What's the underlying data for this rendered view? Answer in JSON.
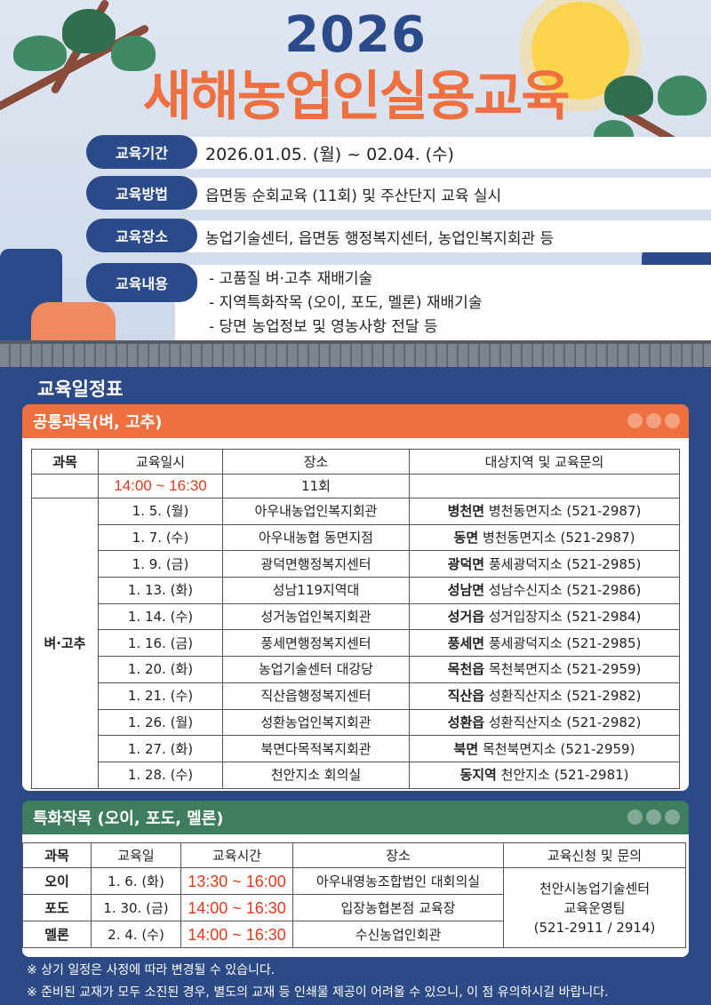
{
  "header": {
    "year": "2026",
    "title": "새해농업인실용교육"
  },
  "info": [
    {
      "label": "교육기간",
      "value": "2026.01.05. (월) ~ 02.04. (수)"
    },
    {
      "label": "교육방법",
      "value": "읍면동 순회교육 (11회) 및 주산단지 교육 실시"
    },
    {
      "label": "교육장소",
      "value": "농업기술센터, 읍면동 행정복지센터, 농업인복지회관 등"
    },
    {
      "label": "교육내용",
      "lines": [
        "- 고품질 벼·고추 재배기술",
        "- 지역특화작목 (오이, 포도, 멜론) 재배기술",
        "- 당면 농업정보 및 영농사항 전달 등"
      ]
    }
  ],
  "schedule_title": "교육일정표",
  "common": {
    "title": "공통과목(벼, 고추)",
    "headers": [
      "과목",
      "교육일시",
      "장소",
      "대상지역 및 교육문의"
    ],
    "time": "14:00 ~ 16:30",
    "count": "11회",
    "subject": "벼·고추",
    "rows": [
      {
        "date": "1. 5. (월)",
        "place": "아우내농업인복지회관",
        "region": "병천면",
        "contact": "병천동면지소 (521-2987)"
      },
      {
        "date": "1. 7. (수)",
        "place": "아우내농협 동면지점",
        "region": "동면",
        "contact": "병천동면지소 (521-2987)"
      },
      {
        "date": "1. 9. (금)",
        "place": "광덕면행정복지센터",
        "region": "광덕면",
        "contact": "풍세광덕지소 (521-2985)"
      },
      {
        "date": "1. 13. (화)",
        "place": "성남119지역대",
        "region": "성남면",
        "contact": "성남수신지소 (521-2986)"
      },
      {
        "date": "1. 14. (수)",
        "place": "성거농업인복지회관",
        "region": "성거읍",
        "contact": "성거입장지소 (521-2984)"
      },
      {
        "date": "1. 16. (금)",
        "place": "풍세면행정복지센터",
        "region": "풍세면",
        "contact": "풍세광덕지소 (521-2985)"
      },
      {
        "date": "1. 20. (화)",
        "place": "농업기술센터 대강당",
        "region": "목천읍",
        "contact": "목천북면지소 (521-2959)"
      },
      {
        "date": "1. 21. (수)",
        "place": "직산읍행정복지센터",
        "region": "직산읍",
        "contact": "성환직산지소 (521-2982)"
      },
      {
        "date": "1. 26. (월)",
        "place": "성환농업인복지회관",
        "region": "성환읍",
        "contact": "성환직산지소 (521-2982)"
      },
      {
        "date": "1. 27. (화)",
        "place": "북면다목적복지회관",
        "region": "북면",
        "contact": "목천북면지소 (521-2959)"
      },
      {
        "date": "1. 28. (수)",
        "place": "천안지소 회의실",
        "region": "동지역",
        "contact": "천안지소 (521-2981)"
      }
    ]
  },
  "special": {
    "title": "특화작목 (오이, 포도, 멜론)",
    "headers": [
      "과목",
      "교육일",
      "교육시간",
      "장소",
      "교육신청 및 문의"
    ],
    "rows": [
      {
        "subject": "오이",
        "date": "1. 6. (화)",
        "time": "13:30 ~ 16:00",
        "place": "아우내영농조합법인 대회의실"
      },
      {
        "subject": "포도",
        "date": "1. 30. (금)",
        "time": "14:00 ~ 16:30",
        "place": "입장농협본점 교육장"
      },
      {
        "subject": "멜론",
        "date": "2. 4. (수)",
        "time": "14:00 ~ 16:30",
        "place": "수신농업인회관"
      }
    ],
    "contact": [
      "천안시농업기술센터",
      "교육운영팀",
      "(521-2911 / 2914)"
    ]
  },
  "notes": [
    "※ 상기 일정은 사정에 따라 변경될 수 있습니다.",
    "※ 준비된 교재가 모두 소진된 경우, 별도의 교재 등 인쇄물 제공이 어려울 수 있으니, 이 점 유의하시길 바랍니다."
  ],
  "colors": {
    "navy": "#2b4a8a",
    "orange": "#ee6f3f",
    "green": "#3f7d5f",
    "red": "#e8381e",
    "body": "#2c4a85"
  }
}
